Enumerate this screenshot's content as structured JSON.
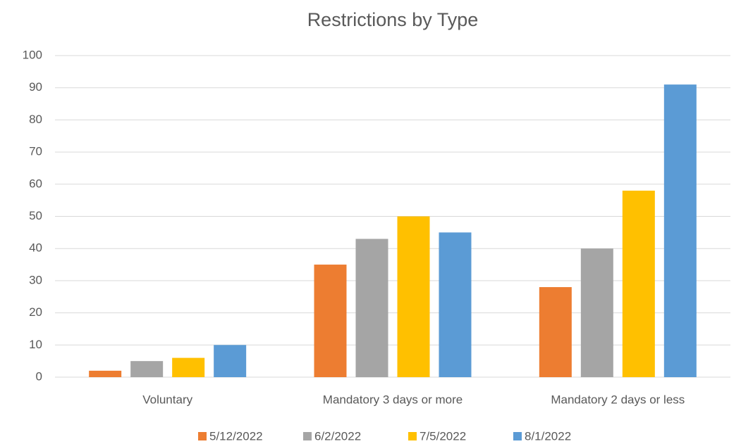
{
  "chart_data": {
    "type": "bar",
    "title": "Restrictions by Type",
    "categories": [
      "Voluntary",
      "Mandatory 3 days or more",
      "Mandatory 2 days or less"
    ],
    "series": [
      {
        "name": "5/12/2022",
        "color": "#ed7d31",
        "values": [
          2,
          35,
          28
        ]
      },
      {
        "name": "6/2/2022",
        "color": "#a5a5a5",
        "values": [
          5,
          43,
          40
        ]
      },
      {
        "name": "7/5/2022",
        "color": "#ffc000",
        "values": [
          6,
          50,
          58
        ]
      },
      {
        "name": "8/1/2022",
        "color": "#5b9bd5",
        "values": [
          10,
          45,
          91
        ]
      }
    ],
    "ylim": [
      0,
      100
    ],
    "yticks": [
      0,
      10,
      20,
      30,
      40,
      50,
      60,
      70,
      80,
      90,
      100
    ],
    "grid": true,
    "legend": "bottom"
  }
}
